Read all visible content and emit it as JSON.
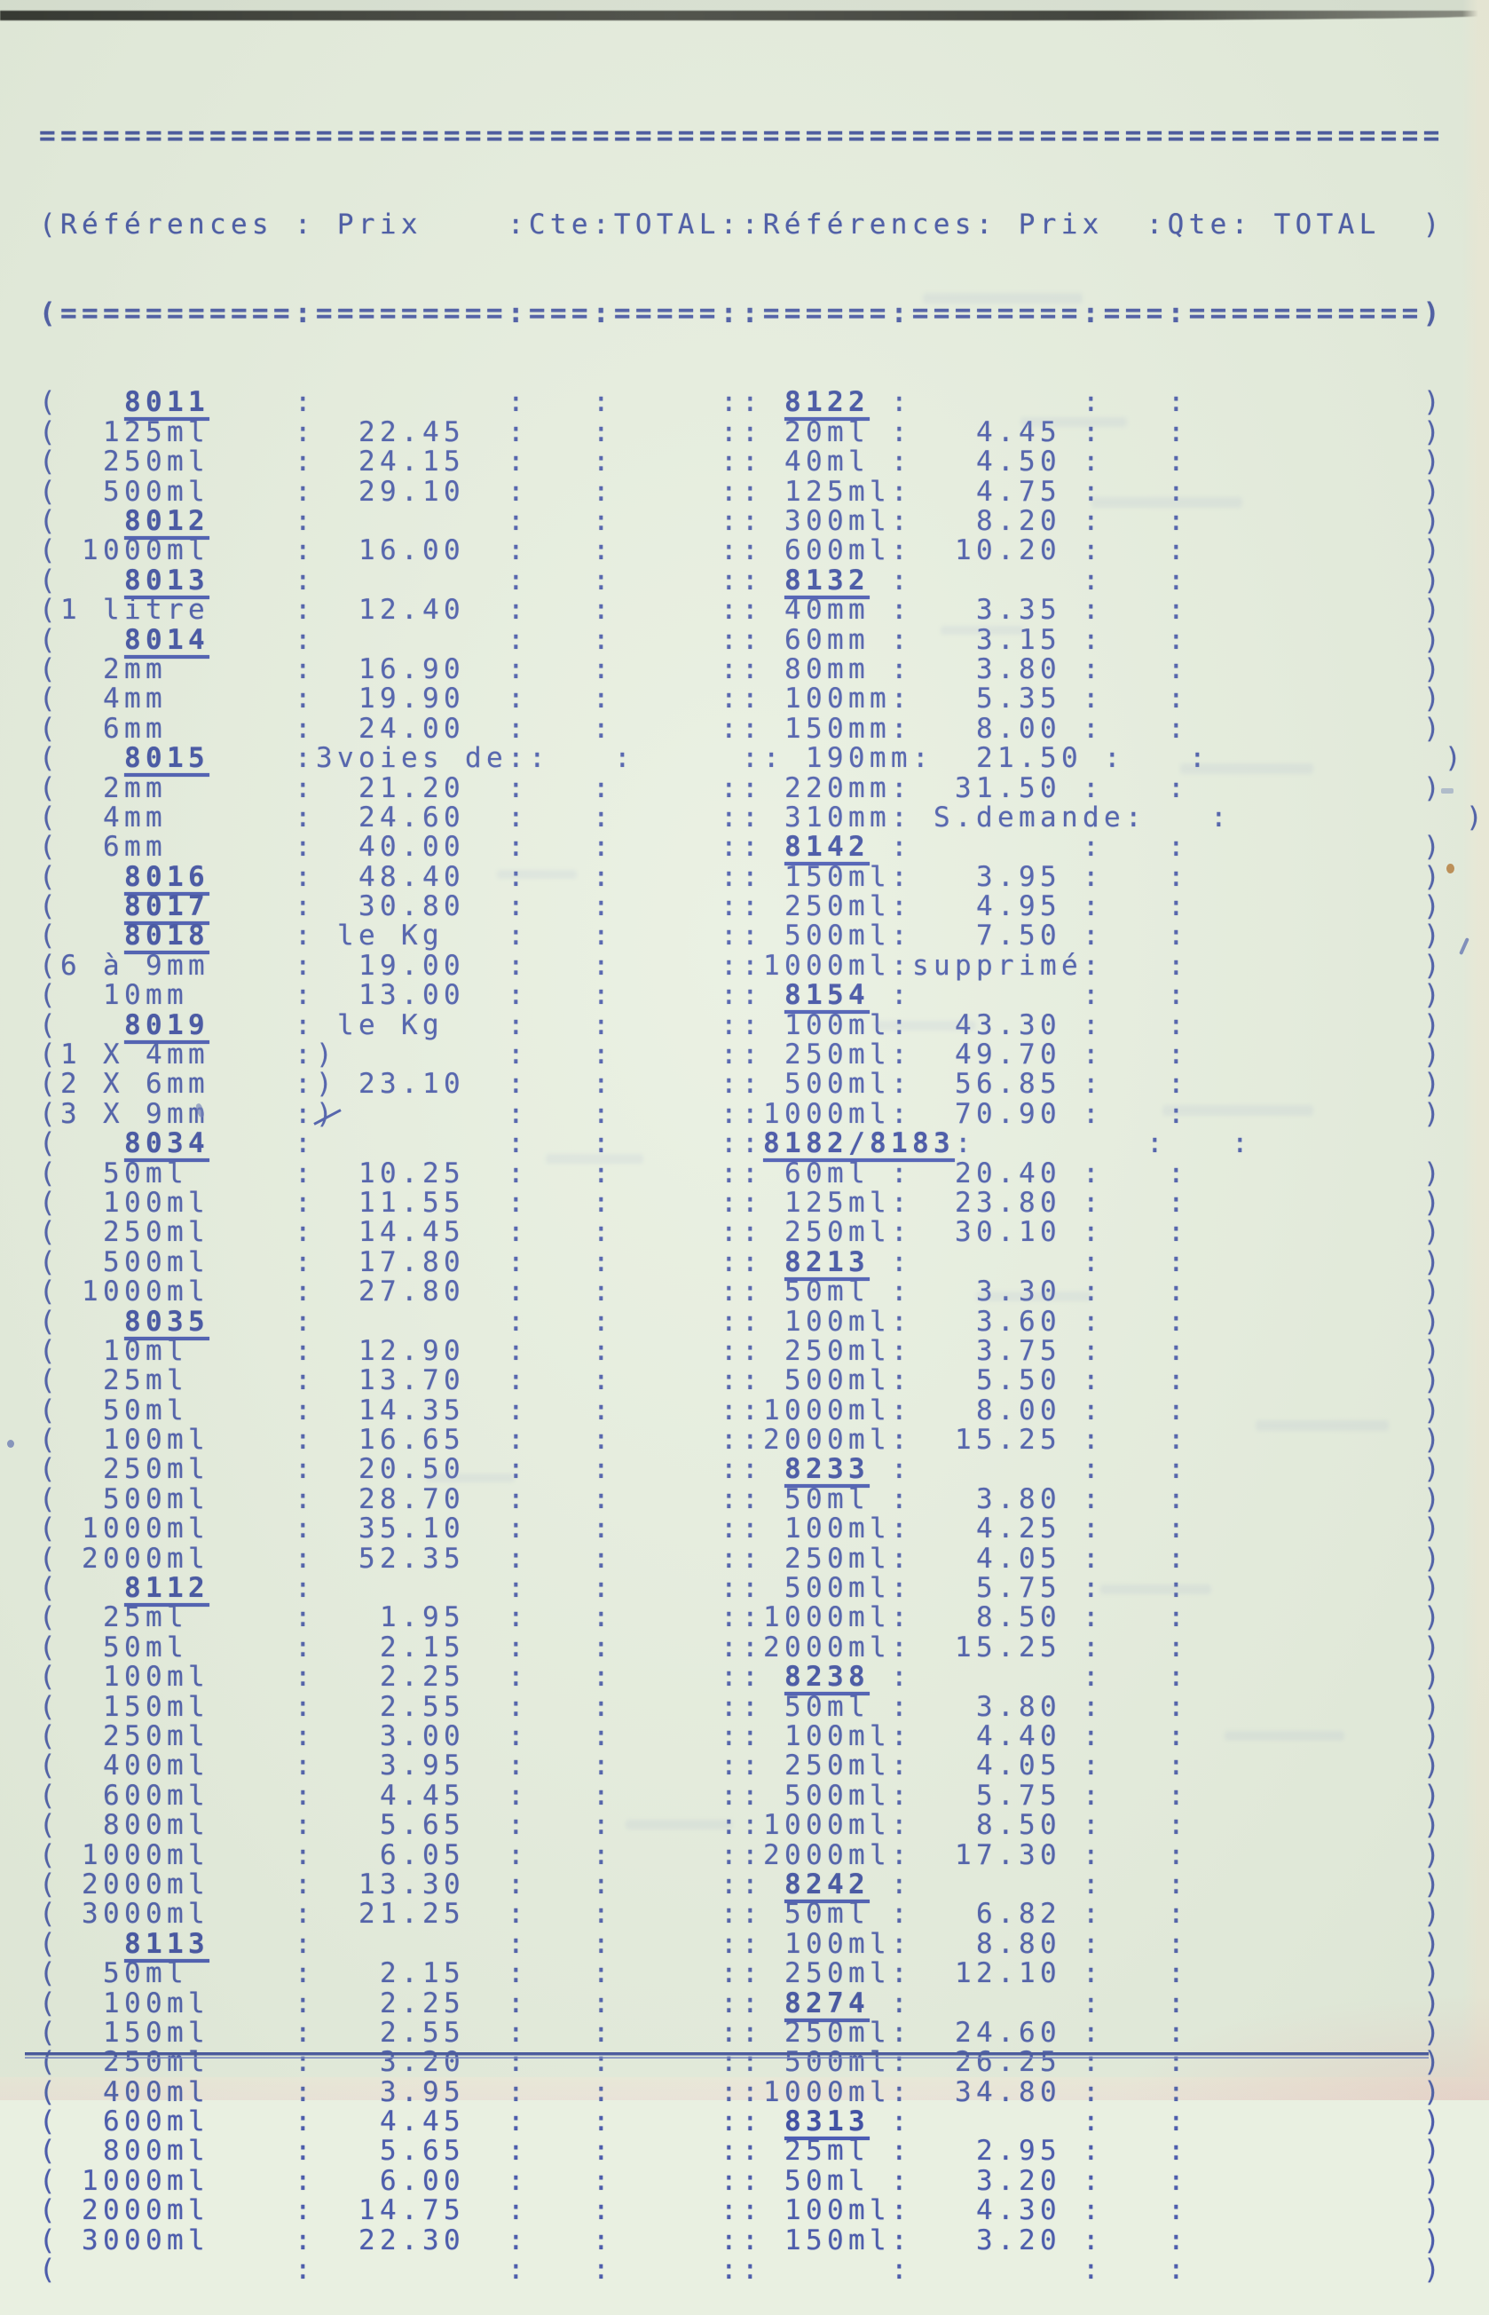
{
  "title": "Tarif - liste de prix (page dactylographiée)",
  "colors": {
    "paper": "#e9f0e1",
    "ink": "#4d5dac",
    "ink_dark": "#4252a4",
    "rule": "#45549f"
  },
  "glyphs": {
    "open_paren": "(",
    "close_paren": ")",
    "colon": ":",
    "double_colon": "::"
  },
  "rules": {
    "top": "==================================================================",
    "separator": "(===========:=========:===:=====::======:========:===:===========)"
  },
  "header_line": "(Références : Prix    :Cte:TOTAL::Références: Prix  :Qte: TOTAL  )",
  "header": {
    "references_left": "Références",
    "prix_left": "Prix",
    "cte": "Cte",
    "total_left": "TOTAL",
    "references_right": "Références",
    "prix_right": "Prix",
    "qte": "Qte",
    "total_right": "TOTAL"
  },
  "rows": [
    [
      [
        "   8011",
        "",
        "u"
      ],
      [
        " 8122",
        "",
        "u"
      ]
    ],
    [
      [
        "  125ml",
        "22.45",
        ""
      ],
      [
        " 20ml",
        "4.45",
        ""
      ]
    ],
    [
      [
        "  250ml",
        "24.15",
        ""
      ],
      [
        " 40ml",
        "4.50",
        ""
      ]
    ],
    [
      [
        "  500ml",
        "29.10",
        ""
      ],
      [
        " 125ml",
        "4.75",
        ""
      ]
    ],
    [
      [
        "   8012",
        "",
        "u"
      ],
      [
        " 300ml",
        "8.20",
        ""
      ]
    ],
    [
      [
        " 1000ml",
        "16.00",
        ""
      ],
      [
        " 600ml",
        "10.20",
        ""
      ]
    ],
    [
      [
        "   8013",
        "",
        "u"
      ],
      [
        " 8132",
        "",
        "u"
      ]
    ],
    [
      [
        "1 litre",
        "12.40",
        ""
      ],
      [
        " 40mm",
        "3.35",
        ""
      ]
    ],
    [
      [
        "   8014",
        "",
        "u"
      ],
      [
        " 60mm",
        "3.15",
        ""
      ]
    ],
    [
      [
        "  2mm",
        "16.90",
        ""
      ],
      [
        " 80mm",
        "3.80",
        ""
      ]
    ],
    [
      [
        "  4mm",
        "19.90",
        ""
      ],
      [
        " 100mm",
        "5.35",
        ""
      ]
    ],
    [
      [
        "  6mm",
        "24.00",
        ""
      ],
      [
        " 150mm",
        "8.00",
        ""
      ]
    ],
    [
      [
        "   8015",
        "3voies de:",
        "utW"
      ],
      [
        " 190mm",
        "21.50",
        ""
      ]
    ],
    [
      [
        "  2mm",
        "21.20",
        ""
      ],
      [
        " 220mm",
        "31.50",
        ""
      ]
    ],
    [
      [
        "  4mm",
        "24.60",
        ""
      ],
      [
        " 310mm",
        " S.demande",
        "tW"
      ]
    ],
    [
      [
        "  6mm",
        "40.00",
        ""
      ],
      [
        " 8142",
        "",
        "u"
      ]
    ],
    [
      [
        "   8016",
        "48.40",
        "u"
      ],
      [
        " 150ml",
        "3.95",
        ""
      ]
    ],
    [
      [
        "   8017",
        "30.80",
        "u"
      ],
      [
        " 250ml",
        "4.95",
        ""
      ]
    ],
    [
      [
        "   8018",
        " le Kg",
        "ut"
      ],
      [
        " 500ml",
        "7.50",
        ""
      ]
    ],
    [
      [
        "6 à 9mm",
        "19.00",
        ""
      ],
      [
        "1000ml",
        "supprimé",
        "t"
      ]
    ],
    [
      [
        "  10mm",
        "13.00",
        ""
      ],
      [
        " 8154",
        "",
        "u"
      ]
    ],
    [
      [
        "   8019",
        " le Kg",
        "ut"
      ],
      [
        " 100ml",
        "43.30",
        ""
      ]
    ],
    [
      [
        "1 X 4mm",
        ")",
        "t"
      ],
      [
        " 250ml",
        "49.70",
        ""
      ]
    ],
    [
      [
        "2 X 6mm",
        ") 23.10",
        "t"
      ],
      [
        " 500ml",
        "56.85",
        ""
      ]
    ],
    [
      [
        "3 X 9mm",
        ")",
        "ts"
      ],
      [
        "1000ml",
        "70.90",
        ""
      ]
    ],
    [
      [
        "   8034",
        "",
        "u"
      ],
      [
        "8182/8183",
        "",
        "uw"
      ]
    ],
    [
      [
        "  50ml",
        "10.25",
        ""
      ],
      [
        " 60ml",
        "20.40",
        ""
      ]
    ],
    [
      [
        "  100ml",
        "11.55",
        ""
      ],
      [
        " 125ml",
        "23.80",
        ""
      ]
    ],
    [
      [
        "  250ml",
        "14.45",
        ""
      ],
      [
        " 250ml",
        "30.10",
        ""
      ]
    ],
    [
      [
        "  500ml",
        "17.80",
        ""
      ],
      [
        " 8213",
        "",
        "u"
      ]
    ],
    [
      [
        " 1000ml",
        "27.80",
        ""
      ],
      [
        " 50ml",
        "3.30",
        ""
      ]
    ],
    [
      [
        "   8035",
        "",
        "u"
      ],
      [
        " 100ml",
        "3.60",
        ""
      ]
    ],
    [
      [
        "  10ml",
        "12.90",
        ""
      ],
      [
        " 250ml",
        "3.75",
        ""
      ]
    ],
    [
      [
        "  25ml",
        "13.70",
        ""
      ],
      [
        " 500ml",
        "5.50",
        ""
      ]
    ],
    [
      [
        "  50ml",
        "14.35",
        ""
      ],
      [
        "1000ml",
        "8.00",
        ""
      ]
    ],
    [
      [
        "  100ml",
        "16.65",
        ""
      ],
      [
        "2000ml",
        "15.25",
        ""
      ]
    ],
    [
      [
        "  250ml",
        "20.50",
        ""
      ],
      [
        " 8233",
        "",
        "u"
      ]
    ],
    [
      [
        "  500ml",
        "28.70",
        ""
      ],
      [
        " 50ml",
        "3.80",
        ""
      ]
    ],
    [
      [
        " 1000ml",
        "35.10",
        ""
      ],
      [
        " 100ml",
        "4.25",
        ""
      ]
    ],
    [
      [
        " 2000ml",
        "52.35",
        ""
      ],
      [
        " 250ml",
        "4.05",
        ""
      ]
    ],
    [
      [
        "   8112",
        "",
        "u"
      ],
      [
        " 500ml",
        "5.75",
        ""
      ]
    ],
    [
      [
        "  25ml",
        "1.95",
        ""
      ],
      [
        "1000ml",
        "8.50",
        ""
      ]
    ],
    [
      [
        "  50ml",
        "2.15",
        ""
      ],
      [
        "2000ml",
        "15.25",
        ""
      ]
    ],
    [
      [
        "  100ml",
        "2.25",
        ""
      ],
      [
        " 8238",
        "",
        "u"
      ]
    ],
    [
      [
        "  150ml",
        "2.55",
        ""
      ],
      [
        " 50ml",
        "3.80",
        ""
      ]
    ],
    [
      [
        "  250ml",
        "3.00",
        ""
      ],
      [
        " 100ml",
        "4.40",
        ""
      ]
    ],
    [
      [
        "  400ml",
        "3.95",
        ""
      ],
      [
        " 250ml",
        "4.05",
        ""
      ]
    ],
    [
      [
        "  600ml",
        "4.45",
        ""
      ],
      [
        " 500ml",
        "5.75",
        ""
      ]
    ],
    [
      [
        "  800ml",
        "5.65",
        ""
      ],
      [
        "1000ml",
        "8.50",
        ""
      ]
    ],
    [
      [
        " 1000ml",
        "6.05",
        ""
      ],
      [
        "2000ml",
        "17.30",
        ""
      ]
    ],
    [
      [
        " 2000ml",
        "13.30",
        ""
      ],
      [
        " 8242",
        "",
        "u"
      ]
    ],
    [
      [
        " 3000ml",
        "21.25",
        ""
      ],
      [
        " 50ml",
        "6.82",
        ""
      ]
    ],
    [
      [
        "   8113",
        "",
        "u"
      ],
      [
        " 100ml",
        "8.80",
        ""
      ]
    ],
    [
      [
        "  50ml",
        "2.15",
        ""
      ],
      [
        " 250ml",
        "12.10",
        ""
      ]
    ],
    [
      [
        "  100ml",
        "2.25",
        ""
      ],
      [
        " 8274",
        "",
        "u"
      ]
    ],
    [
      [
        "  150ml",
        "2.55",
        ""
      ],
      [
        " 250ml",
        "24.60",
        ""
      ]
    ],
    [
      [
        "  250ml",
        "3.20",
        ""
      ],
      [
        " 500ml",
        "26.25",
        ""
      ]
    ],
    [
      [
        "  400ml",
        "3.95",
        ""
      ],
      [
        "1000ml",
        "34.80",
        ""
      ]
    ],
    [
      [
        "  600ml",
        "4.45",
        ""
      ],
      [
        " 8313",
        "",
        "u"
      ]
    ],
    [
      [
        "  800ml",
        "5.65",
        ""
      ],
      [
        " 25ml",
        "2.95",
        ""
      ]
    ],
    [
      [
        " 1000ml",
        "6.00",
        ""
      ],
      [
        " 50ml",
        "3.20",
        ""
      ]
    ],
    [
      [
        " 2000ml",
        "14.75",
        ""
      ],
      [
        " 100ml",
        "4.30",
        ""
      ]
    ],
    [
      [
        " 3000ml",
        "22.30",
        ""
      ],
      [
        " 150ml",
        "3.20",
        ""
      ]
    ],
    [
      [
        "",
        "",
        ""
      ],
      [
        "",
        "",
        ""
      ]
    ]
  ]
}
